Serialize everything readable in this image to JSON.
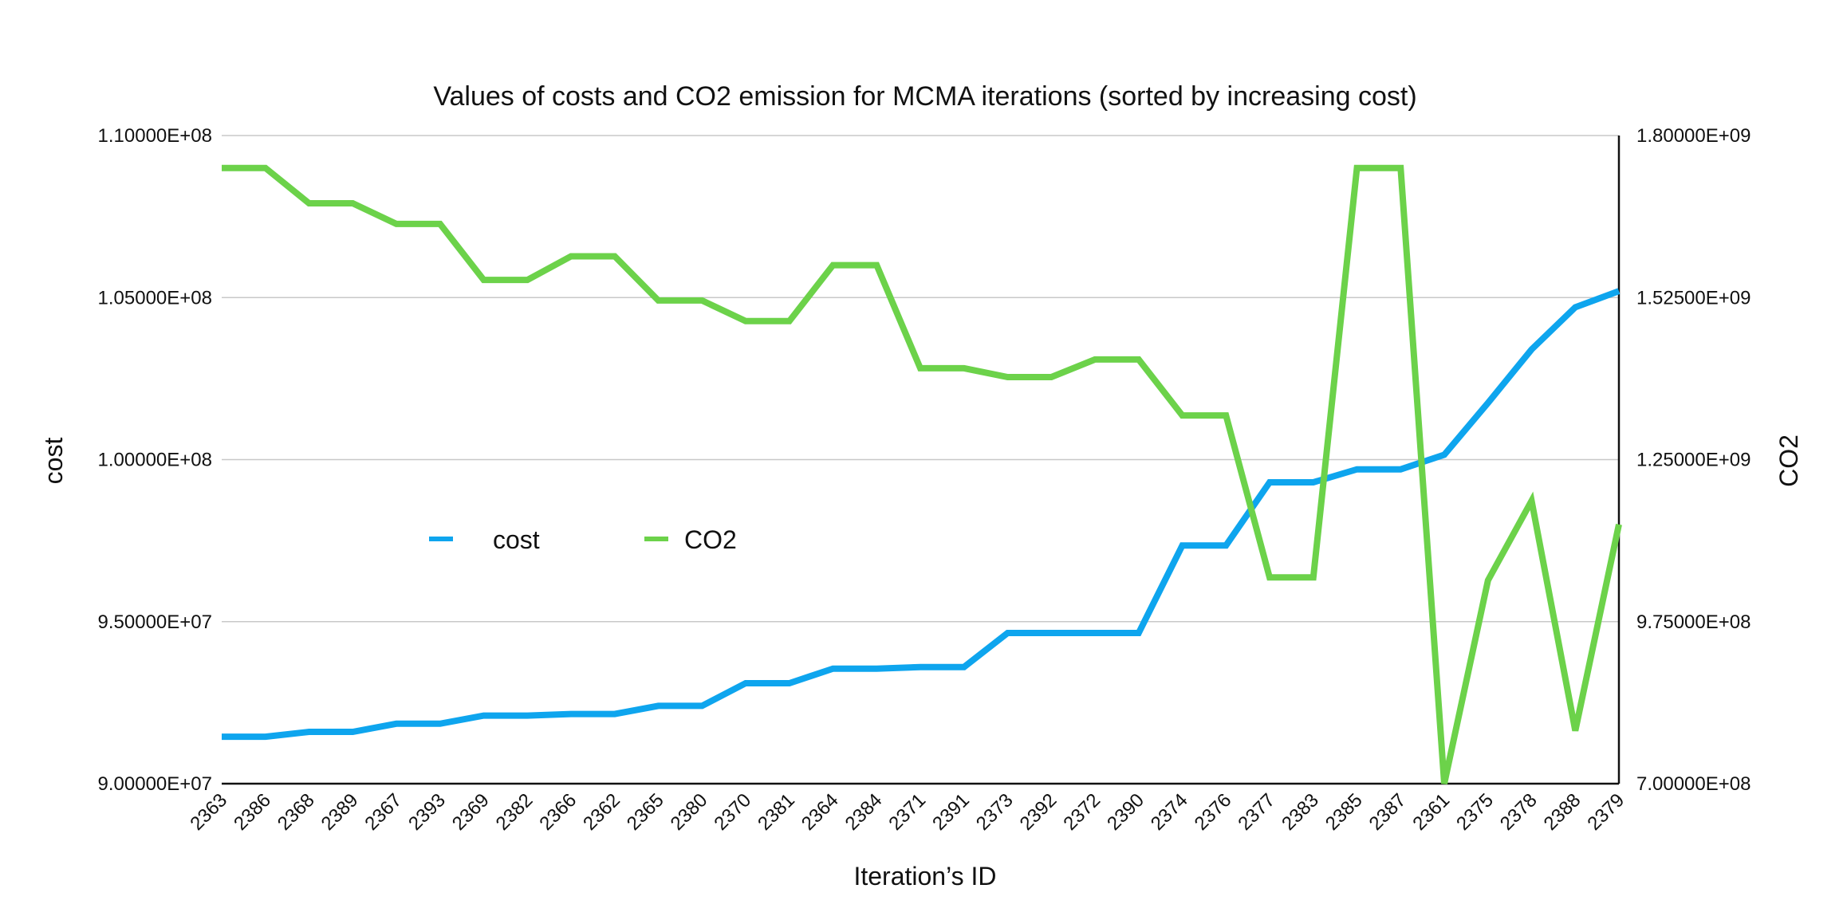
{
  "chart_data": {
    "type": "line",
    "title": "Values of costs and CO2 emission for MCMA iterations (sorted by increasing cost)",
    "xlabel": "Iteration’s ID",
    "ylabel": "cost",
    "y2label": "CO2",
    "categories": [
      "2363",
      "2386",
      "2368",
      "2389",
      "2367",
      "2393",
      "2369",
      "2382",
      "2366",
      "2362",
      "2365",
      "2380",
      "2370",
      "2381",
      "2364",
      "2384",
      "2371",
      "2391",
      "2373",
      "2392",
      "2372",
      "2390",
      "2374",
      "2376",
      "2377",
      "2383",
      "2385",
      "2387",
      "2361",
      "2375",
      "2378",
      "2388",
      "2379"
    ],
    "ylim": [
      90000000,
      110000000
    ],
    "y2lim": [
      700000000,
      1800000000
    ],
    "yticks": [
      90000000,
      95000000,
      100000000,
      105000000,
      110000000
    ],
    "yticklabels": [
      "9.00000E+07",
      "9.50000E+07",
      "1.00000E+08",
      "1.05000E+08",
      "1.10000E+08"
    ],
    "y2ticks": [
      700000000,
      975000000,
      1250000000,
      1525000000,
      1800000000
    ],
    "y2ticklabels": [
      "7.00000E+08",
      "9.75000E+08",
      "1.25000E+09",
      "1.52500E+09",
      "1.80000E+09"
    ],
    "grid": true,
    "legend_position": "center-left",
    "series": [
      {
        "name": "cost",
        "axis": "left",
        "color": "#0ea5ee",
        "values": [
          91450000,
          91450000,
          91600000,
          91600000,
          91850000,
          91850000,
          92100000,
          92100000,
          92150000,
          92150000,
          92400000,
          92400000,
          93100000,
          93100000,
          93550000,
          93550000,
          93600000,
          93600000,
          94650000,
          94650000,
          94650000,
          94650000,
          97350000,
          97350000,
          99300000,
          99300000,
          99700000,
          99700000,
          100150000,
          101750000,
          103400000,
          104700000,
          105200000
        ]
      },
      {
        "name": "CO2",
        "axis": "right",
        "color": "#6cd24a",
        "values": [
          1745000000,
          1745000000,
          1685000000,
          1685000000,
          1650000000,
          1650000000,
          1555000000,
          1555000000,
          1595000000,
          1595000000,
          1520000000,
          1520000000,
          1485000000,
          1485000000,
          1580000000,
          1580000000,
          1405000000,
          1405000000,
          1390000000,
          1390000000,
          1420000000,
          1420000000,
          1325000000,
          1325000000,
          1050000000,
          1050000000,
          1745000000,
          1745000000,
          700000000,
          1045000000,
          1180000000,
          790000000,
          1140000000
        ]
      }
    ]
  }
}
